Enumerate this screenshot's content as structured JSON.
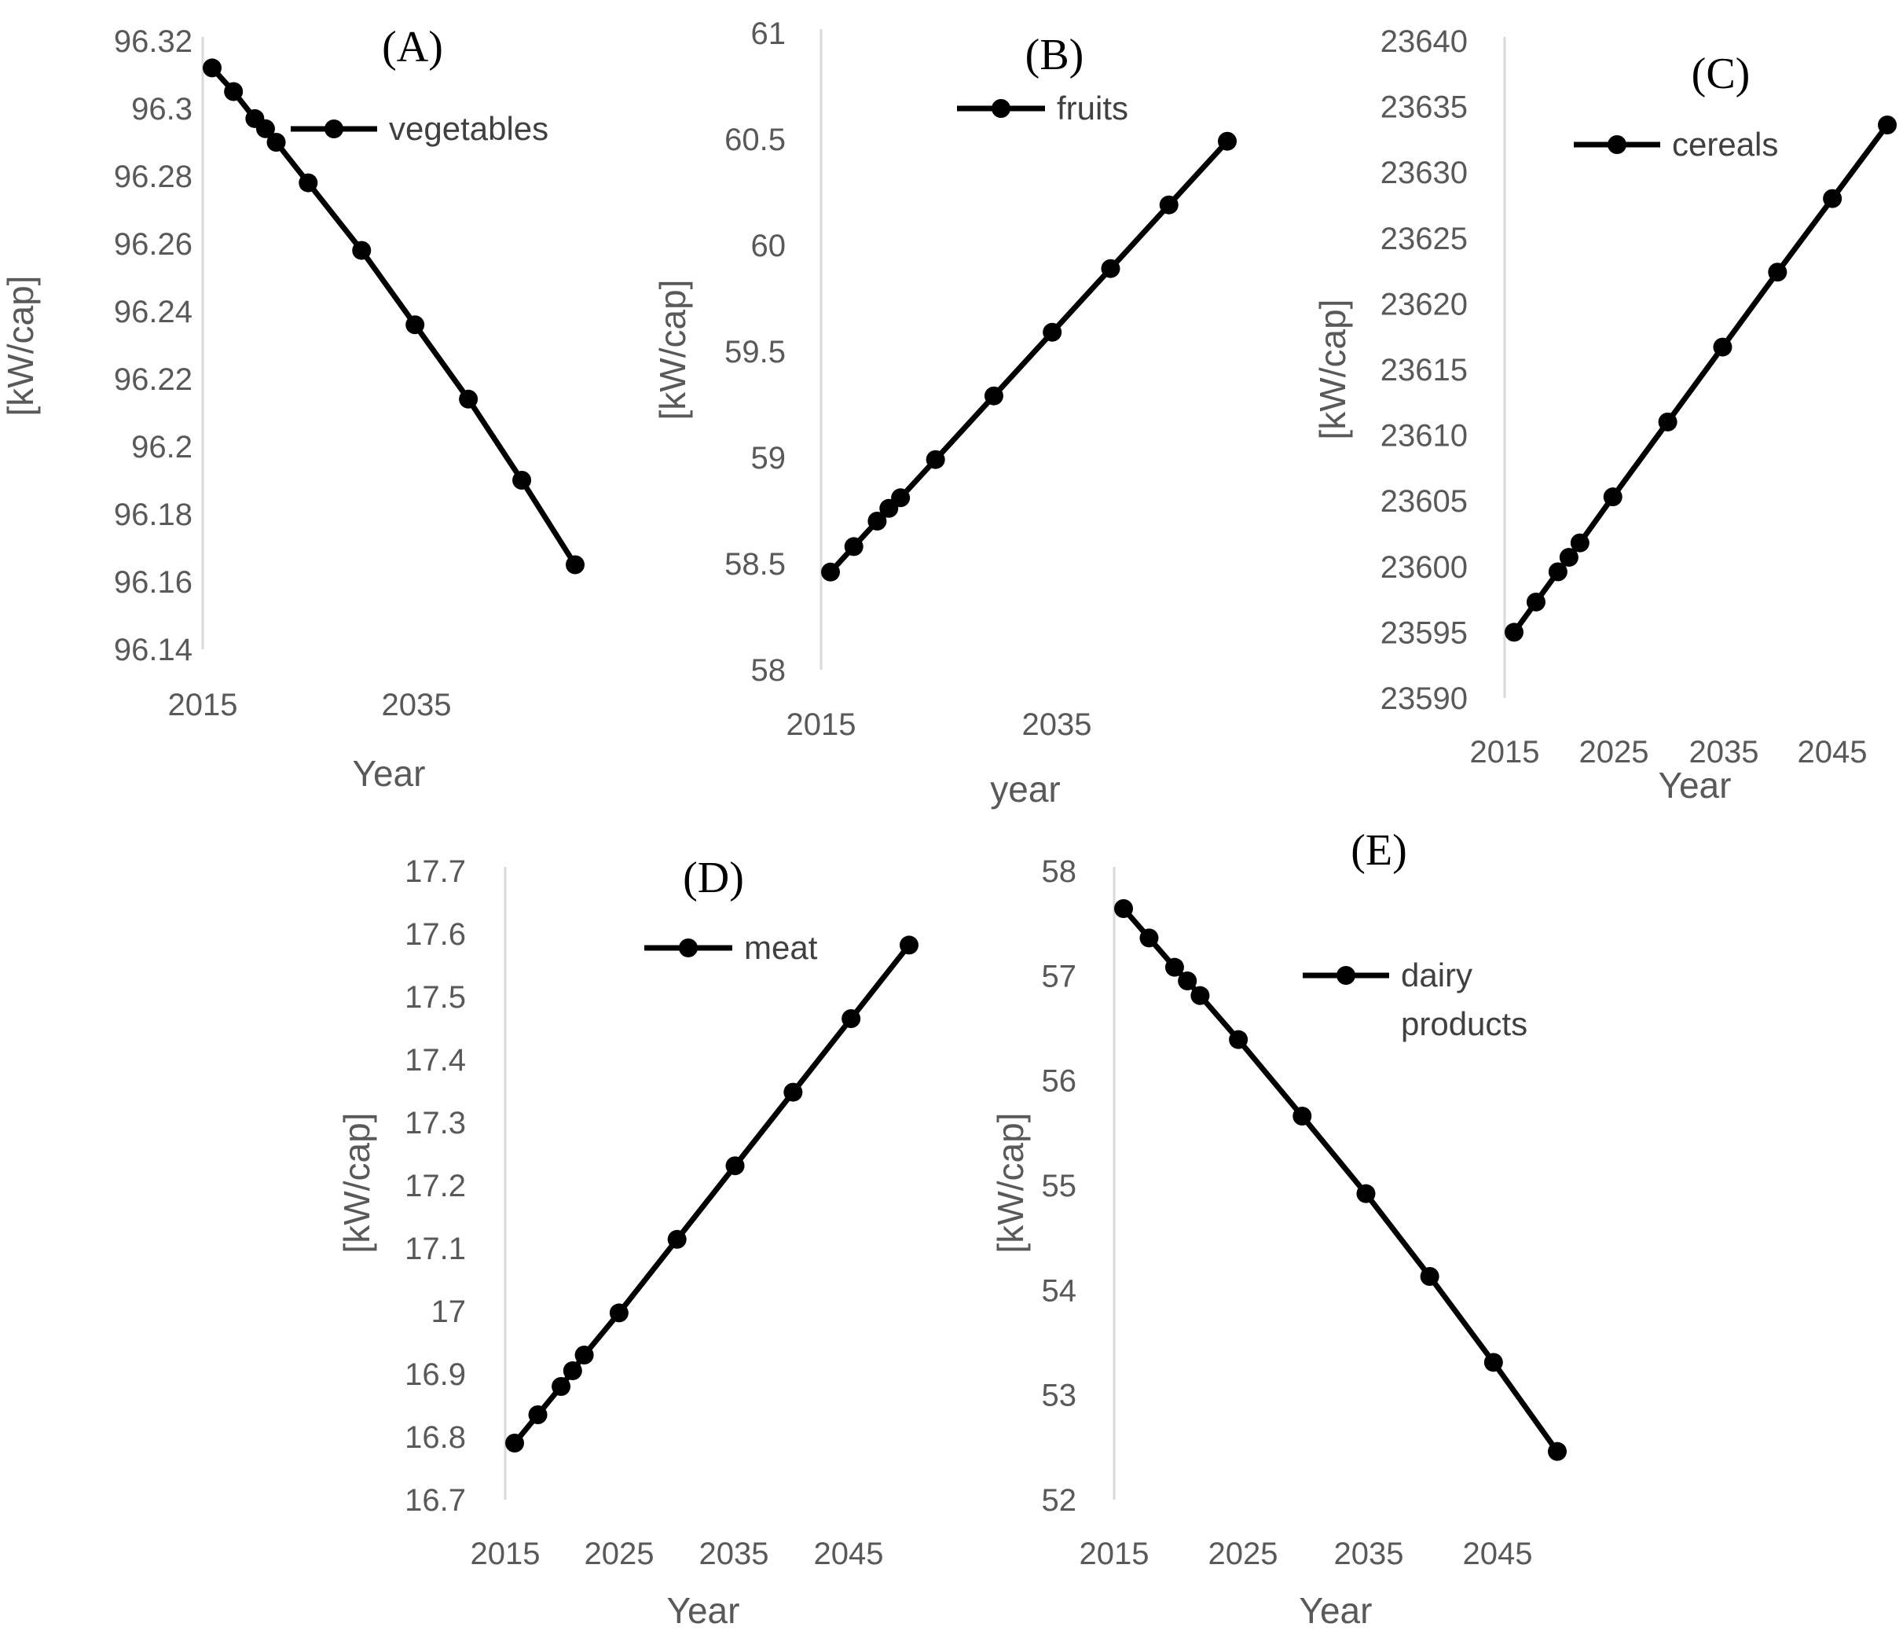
{
  "colors": {
    "series": "#000000",
    "axis": "#d9d9d9",
    "text": "#595959"
  },
  "chart_data": [
    {
      "type": "line",
      "panel_label": "(A)",
      "xlabel": "Year",
      "ylabel": "[kW/cap]",
      "ylim": [
        96.14,
        96.32
      ],
      "yticks": [
        "96.14",
        "96.16",
        "96.18",
        "96.2",
        "96.22",
        "96.24",
        "96.26",
        "96.28",
        "96.3",
        "96.32"
      ],
      "xlim": [
        2015,
        2050
      ],
      "xticks": [
        "2015",
        "2035"
      ],
      "legend_lines": [
        "vegetables"
      ],
      "series": [
        {
          "name": "vegetables",
          "x": [
            2016,
            2018,
            2020,
            2021,
            2022,
            2025,
            2030,
            2035,
            2040,
            2045,
            2050
          ],
          "y": [
            96.312,
            96.305,
            96.297,
            96.294,
            96.29,
            96.278,
            96.258,
            96.236,
            96.214,
            96.19,
            96.165
          ]
        }
      ]
    },
    {
      "type": "line",
      "panel_label": "(B)",
      "xlabel": "year",
      "ylabel": "[kW/cap]",
      "ylim": [
        58,
        61
      ],
      "yticks": [
        "58",
        "58.5",
        "59",
        "59.5",
        "60",
        "60.5",
        "61"
      ],
      "xlim": [
        2015,
        2050
      ],
      "xticks": [
        "2015",
        "2035"
      ],
      "legend_lines": [
        "fruits"
      ],
      "series": [
        {
          "name": "fruits",
          "x": [
            2016,
            2018,
            2020,
            2021,
            2022,
            2025,
            2030,
            2035,
            2040,
            2045,
            2050
          ],
          "y": [
            58.46,
            58.58,
            58.7,
            58.76,
            58.81,
            58.99,
            59.29,
            59.59,
            59.89,
            60.19,
            60.49
          ]
        }
      ]
    },
    {
      "type": "line",
      "panel_label": "(C)",
      "xlabel": "Year",
      "ylabel": "[kW/cap]",
      "ylim": [
        23590,
        23640
      ],
      "yticks": [
        "23590",
        "23595",
        "23600",
        "23605",
        "23610",
        "23615",
        "23620",
        "23625",
        "23630",
        "23635",
        "23640"
      ],
      "xlim": [
        2015,
        2050
      ],
      "xticks": [
        "2015",
        "2025",
        "2035",
        "2045"
      ],
      "legend_lines": [
        "cereals"
      ],
      "series": [
        {
          "name": "cereals",
          "x": [
            2016,
            2018,
            2020,
            2021,
            2022,
            2025,
            2030,
            2035,
            2040,
            2045,
            2050
          ],
          "y": [
            23595.0,
            23597.3,
            23599.6,
            23600.7,
            23601.8,
            23605.3,
            23611.0,
            23616.7,
            23622.4,
            23628.0,
            23633.6
          ]
        }
      ]
    },
    {
      "type": "line",
      "panel_label": "(D)",
      "xlabel": "Year",
      "ylabel": "[kW/cap]",
      "ylim": [
        16.7,
        17.7
      ],
      "yticks": [
        "16.7",
        "16.8",
        "16.9",
        "17",
        "17.1",
        "17.2",
        "17.3",
        "17.4",
        "17.5",
        "17.6",
        "17.7"
      ],
      "xlim": [
        2015,
        2050
      ],
      "xticks": [
        "2015",
        "2025",
        "2035",
        "2045"
      ],
      "legend_lines": [
        "meat"
      ],
      "series": [
        {
          "name": "meat",
          "x": [
            2016,
            2018,
            2020,
            2021,
            2022,
            2025,
            2030,
            2035,
            2040,
            2045,
            2050
          ],
          "y": [
            16.79,
            16.835,
            16.88,
            16.905,
            16.93,
            16.997,
            17.114,
            17.231,
            17.348,
            17.465,
            17.582
          ]
        }
      ]
    },
    {
      "type": "line",
      "panel_label": "(E)",
      "xlabel": "Year",
      "ylabel": "[kW/cap]",
      "ylim": [
        52,
        58
      ],
      "yticks": [
        "52",
        "53",
        "54",
        "55",
        "56",
        "57",
        "58"
      ],
      "xlim": [
        2015,
        2050
      ],
      "xticks": [
        "2015",
        "2025",
        "2035",
        "2045"
      ],
      "legend_lines": [
        "dairy",
        "products"
      ],
      "series": [
        {
          "name": "dairy products",
          "x": [
            2016,
            2018,
            2020,
            2021,
            2022,
            2025,
            2030,
            2035,
            2040,
            2045,
            2050
          ],
          "y": [
            57.64,
            57.36,
            57.08,
            56.95,
            56.81,
            56.39,
            55.66,
            54.92,
            54.13,
            53.31,
            52.46
          ]
        }
      ]
    }
  ]
}
